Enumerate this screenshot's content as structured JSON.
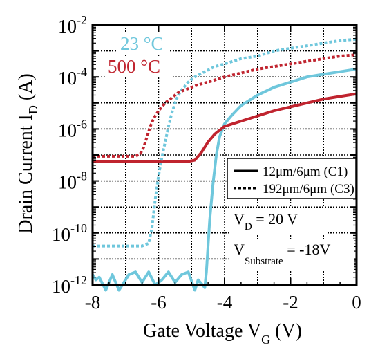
{
  "chart_data": {
    "type": "line",
    "xlabel": "Gate Voltage V",
    "xlabel_sub": "G",
    "xlabel_unit": " (V)",
    "ylabel": "Drain Current I",
    "ylabel_sub": "D",
    "ylabel_unit": " (A)",
    "xlim": [
      -8,
      0
    ],
    "ylim_exponent": [
      -12,
      -2
    ],
    "y_scale": "log",
    "grid": true,
    "x_ticks": [
      -8,
      -6,
      -4,
      -2,
      0
    ],
    "x_tick_labels": [
      "-8",
      "-6",
      "-4",
      "-2",
      "0"
    ],
    "y_ticks_exponent": [
      -12,
      -10,
      -8,
      -6,
      -4,
      -2
    ],
    "y_tick_base": "10",
    "y_tick_exponents": [
      "-12",
      "-10",
      "-8",
      "-6",
      "-4",
      "-2"
    ],
    "temperature_labels": [
      {
        "text": "23 °C",
        "color": "#6fc7dc"
      },
      {
        "text": "500 °C",
        "color": "#c0242f"
      }
    ],
    "legend": {
      "placement": "center-right",
      "entries": [
        {
          "label": "12μm/6μm (C1)",
          "style": "solid"
        },
        {
          "label": "192μm/6μm (C3)",
          "style": "dashed"
        }
      ]
    },
    "annotations": {
      "vd_prefix": "V",
      "vd_sub": "D",
      "vd_value": " = 20 V",
      "vsub_prefix": "V",
      "vsub_sub": "Substrate",
      "vsub_value": " = -18V"
    },
    "series": [
      {
        "key": "c1_23",
        "temperature": "23 °C",
        "device": "12μm/6μm (C1)",
        "color": "#6fc7dc",
        "style": "solid",
        "points": [
          [
            -8.0,
            -11.6
          ],
          [
            -7.9,
            -11.8
          ],
          [
            -7.8,
            -11.7
          ],
          [
            -7.6,
            -12.2
          ],
          [
            -7.4,
            -11.6
          ],
          [
            -7.2,
            -12.2
          ],
          [
            -7.1,
            -12.0
          ],
          [
            -6.9,
            -11.6
          ],
          [
            -6.7,
            -11.5
          ],
          [
            -6.5,
            -11.9
          ],
          [
            -6.3,
            -11.5
          ],
          [
            -6.1,
            -12.0
          ],
          [
            -5.9,
            -11.8
          ],
          [
            -5.7,
            -11.5
          ],
          [
            -5.5,
            -11.9
          ],
          [
            -5.3,
            -11.6
          ],
          [
            -5.1,
            -11.5
          ],
          [
            -4.9,
            -12.2
          ],
          [
            -4.8,
            -11.8
          ],
          [
            -4.6,
            -12.1
          ],
          [
            -4.55,
            -11.5
          ],
          [
            -4.45,
            -9.5
          ],
          [
            -4.35,
            -8.1
          ],
          [
            -4.25,
            -7.0
          ],
          [
            -4.15,
            -6.3
          ],
          [
            -4.0,
            -5.8
          ],
          [
            -3.8,
            -5.5
          ],
          [
            -3.5,
            -5.1
          ],
          [
            -3.0,
            -4.7
          ],
          [
            -2.5,
            -4.4
          ],
          [
            -2.0,
            -4.2
          ],
          [
            -1.5,
            -4.0
          ],
          [
            -1.0,
            -3.9
          ],
          [
            -0.5,
            -3.8
          ],
          [
            0.0,
            -3.7
          ]
        ]
      },
      {
        "key": "c1_500",
        "temperature": "500 °C",
        "device": "12μm/6μm (C1)",
        "color": "#c0242f",
        "style": "solid",
        "points": [
          [
            -8.0,
            -7.25
          ],
          [
            -7.0,
            -7.25
          ],
          [
            -6.0,
            -7.25
          ],
          [
            -5.3,
            -7.25
          ],
          [
            -5.1,
            -7.25
          ],
          [
            -4.9,
            -7.2
          ],
          [
            -4.7,
            -6.9
          ],
          [
            -4.5,
            -6.5
          ],
          [
            -4.3,
            -6.2
          ],
          [
            -4.0,
            -5.9
          ],
          [
            -3.5,
            -5.7
          ],
          [
            -3.0,
            -5.5
          ],
          [
            -2.5,
            -5.3
          ],
          [
            -2.0,
            -5.15
          ],
          [
            -1.5,
            -5.0
          ],
          [
            -1.0,
            -4.85
          ],
          [
            -0.5,
            -4.75
          ],
          [
            0.0,
            -4.65
          ]
        ]
      },
      {
        "key": "c3_23",
        "temperature": "23 °C",
        "device": "192μm/6μm (C3)",
        "color": "#6fc7dc",
        "style": "dashed",
        "points": [
          [
            -8.0,
            -10.5
          ],
          [
            -7.5,
            -10.5
          ],
          [
            -7.0,
            -10.5
          ],
          [
            -6.5,
            -10.5
          ],
          [
            -6.3,
            -10.4
          ],
          [
            -6.2,
            -9.8
          ],
          [
            -6.1,
            -8.7
          ],
          [
            -6.0,
            -7.8
          ],
          [
            -5.9,
            -7.1
          ],
          [
            -5.8,
            -6.5
          ],
          [
            -5.7,
            -5.9
          ],
          [
            -5.6,
            -5.4
          ],
          [
            -5.5,
            -5.0
          ],
          [
            -5.4,
            -4.7
          ],
          [
            -5.3,
            -4.5
          ],
          [
            -5.1,
            -4.2
          ],
          [
            -4.9,
            -4.0
          ],
          [
            -4.6,
            -3.8
          ],
          [
            -4.3,
            -3.6
          ],
          [
            -4.0,
            -3.5
          ],
          [
            -3.5,
            -3.3
          ],
          [
            -3.0,
            -3.2
          ],
          [
            -2.5,
            -3.0
          ],
          [
            -2.0,
            -2.9
          ],
          [
            -1.5,
            -2.8
          ],
          [
            -1.0,
            -2.7
          ],
          [
            -0.5,
            -2.6
          ],
          [
            0.0,
            -2.55
          ]
        ]
      },
      {
        "key": "c3_500",
        "temperature": "500 °C",
        "device": "192μm/6μm (C3)",
        "color": "#c0242f",
        "style": "dashed",
        "points": [
          [
            -8.0,
            -7.05
          ],
          [
            -7.5,
            -7.05
          ],
          [
            -7.0,
            -7.05
          ],
          [
            -6.7,
            -7.05
          ],
          [
            -6.55,
            -6.95
          ],
          [
            -6.45,
            -6.7
          ],
          [
            -6.35,
            -6.3
          ],
          [
            -6.25,
            -5.9
          ],
          [
            -6.15,
            -5.6
          ],
          [
            -6.0,
            -5.3
          ],
          [
            -5.8,
            -5.0
          ],
          [
            -5.6,
            -4.8
          ],
          [
            -5.4,
            -4.6
          ],
          [
            -5.2,
            -4.5
          ],
          [
            -5.0,
            -4.4
          ],
          [
            -4.8,
            -4.3
          ],
          [
            -4.5,
            -4.2
          ],
          [
            -4.0,
            -4.0
          ],
          [
            -3.5,
            -3.85
          ],
          [
            -3.0,
            -3.7
          ],
          [
            -2.5,
            -3.6
          ],
          [
            -2.0,
            -3.5
          ],
          [
            -1.5,
            -3.4
          ],
          [
            -1.0,
            -3.3
          ],
          [
            -0.5,
            -3.2
          ],
          [
            0.0,
            -3.15
          ]
        ]
      }
    ]
  }
}
